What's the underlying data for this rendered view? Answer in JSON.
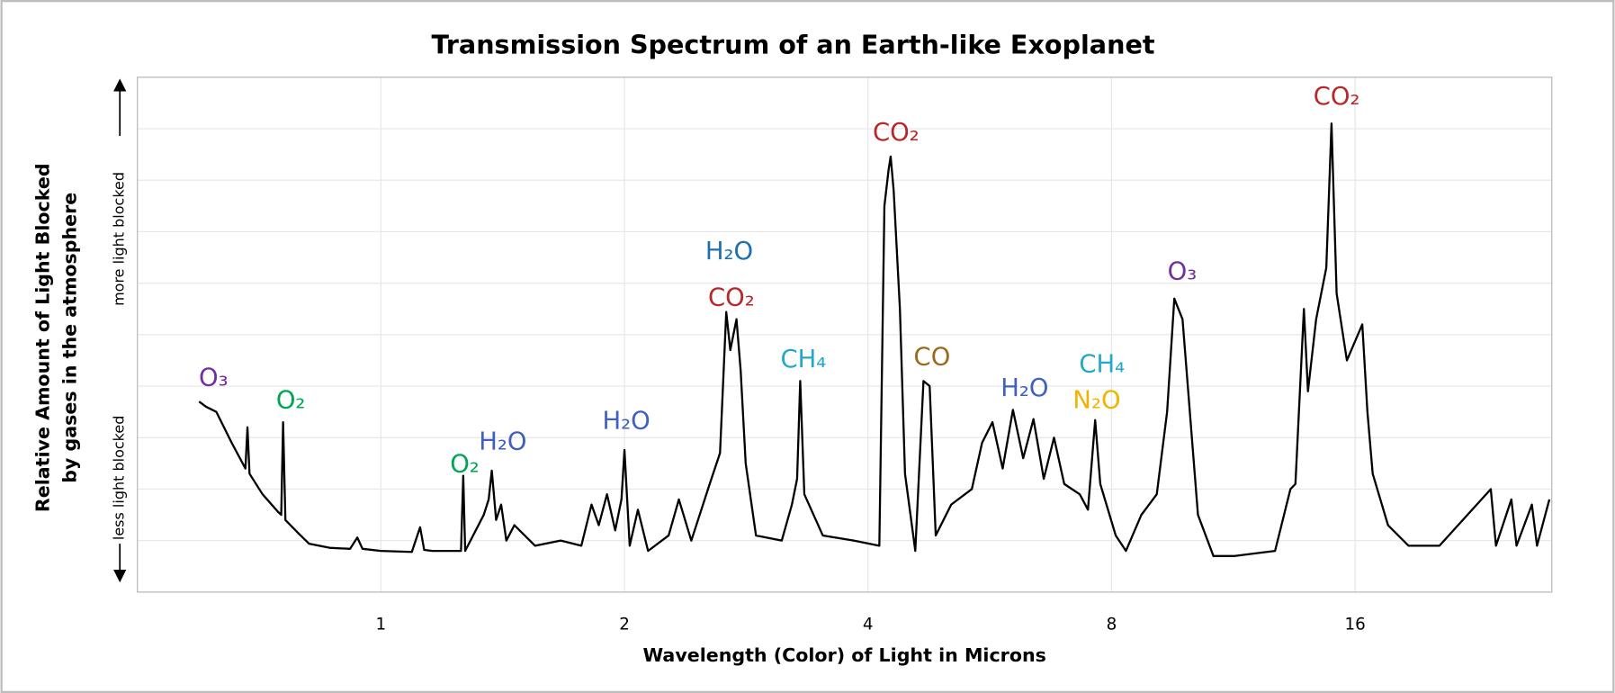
{
  "chart_data": {
    "type": "line",
    "title": "Transmission Spectrum of an Earth-like Exoplanet",
    "xlabel": "Wavelength (Color) of Light in Microns",
    "ylabel": [
      "Relative Amount of Light Blocked",
      "by gases in the atmosphere"
    ],
    "y_more": "more light blocked",
    "y_less": "less light blocked",
    "xscale": "log",
    "xlim": [
      0.5,
      28
    ],
    "xticks": [
      1,
      2,
      4,
      8,
      16
    ],
    "ylim": [
      0,
      10
    ],
    "yticks": [
      1,
      2,
      3,
      4,
      5,
      6,
      7,
      8,
      9
    ],
    "grid": true,
    "color": "#000000",
    "x": [
      0.596,
      0.608,
      0.626,
      0.654,
      0.68,
      0.684,
      0.688,
      0.714,
      0.746,
      0.753,
      0.757,
      0.762,
      0.791,
      0.815,
      0.864,
      0.916,
      0.935,
      0.949,
      1.0,
      1.092,
      1.118,
      1.131,
      1.158,
      1.256,
      1.264,
      1.271,
      1.34,
      1.359,
      1.371,
      1.388,
      1.408,
      1.429,
      1.462,
      1.551,
      1.668,
      1.769,
      1.821,
      1.859,
      1.903,
      1.948,
      1.983,
      2.0,
      2.03,
      2.078,
      2.139,
      2.268,
      2.335,
      2.419,
      2.549,
      2.625,
      2.672,
      2.703,
      2.751,
      2.784,
      2.824,
      2.908,
      3.129,
      3.221,
      3.269,
      3.298,
      3.337,
      3.517,
      3.84,
      4.131,
      4.191,
      4.241,
      4.266,
      4.303,
      4.38,
      4.444,
      4.576,
      4.684,
      4.767,
      4.85,
      5.069,
      5.375,
      5.534,
      5.7,
      5.868,
      6.042,
      6.221,
      6.406,
      6.596,
      6.791,
      6.992,
      7.307,
      7.48,
      7.635,
      7.747,
      8.095,
      8.334,
      8.708,
      9.098,
      9.37,
      9.564,
      9.79,
      10.23,
      10.69,
      11.33,
      12.74,
      13.31,
      13.5,
      13.83,
      13.99,
      14.32,
      14.74,
      14.96,
      15.18,
      15.63,
      16.33,
      16.57,
      16.82,
      17.57,
      18.63,
      20.34,
      23.54,
      23.89,
      24.96,
      25.33,
      26.46,
      26.85,
      27.81
    ],
    "values": [
      3.7,
      3.6,
      3.5,
      2.9,
      2.4,
      3.2,
      2.3,
      1.9,
      1.56,
      1.5,
      3.3,
      1.4,
      1.14,
      0.94,
      0.86,
      0.84,
      1.06,
      0.84,
      0.8,
      0.78,
      1.26,
      0.82,
      0.8,
      0.8,
      2.26,
      0.8,
      1.5,
      1.8,
      2.36,
      1.4,
      1.7,
      1.0,
      1.3,
      0.9,
      1.0,
      0.9,
      1.7,
      1.3,
      1.9,
      1.2,
      1.8,
      2.76,
      0.9,
      1.6,
      0.8,
      1.1,
      1.8,
      1.0,
      2.1,
      2.7,
      5.44,
      4.7,
      5.3,
      4.3,
      2.5,
      1.1,
      1.0,
      1.7,
      2.2,
      4.1,
      1.9,
      1.1,
      1.0,
      0.9,
      7.5,
      8.2,
      8.46,
      7.8,
      5.5,
      2.3,
      0.8,
      4.1,
      4.0,
      1.1,
      1.7,
      2.0,
      2.9,
      3.3,
      2.4,
      3.54,
      2.6,
      3.36,
      2.2,
      3.0,
      2.1,
      1.9,
      1.6,
      3.34,
      2.1,
      1.1,
      0.8,
      1.5,
      1.9,
      3.5,
      5.7,
      5.3,
      1.5,
      0.7,
      0.7,
      0.8,
      2.0,
      2.1,
      5.5,
      3.9,
      5.3,
      6.3,
      9.1,
      5.8,
      4.5,
      5.2,
      3.5,
      2.3,
      1.3,
      0.9,
      0.9,
      2.0,
      0.9,
      1.8,
      0.9,
      1.7,
      0.9,
      1.8
    ],
    "annotations": [
      {
        "text": "O₃",
        "color": "#7030a0"
      },
      {
        "text": "O₂",
        "color": "#00a651"
      },
      {
        "text": "O₂",
        "color": "#00a651"
      },
      {
        "text": "H₂O",
        "color": "#4060c0"
      },
      {
        "text": "H₂O",
        "color": "#4060c0"
      },
      {
        "text": "H₂O",
        "color": "#1f6fb0"
      },
      {
        "text": "CO₂",
        "color": "#b8282a"
      },
      {
        "text": "CH₄",
        "color": "#22a8cc"
      },
      {
        "text": "CO₂",
        "color": "#b8282a"
      },
      {
        "text": "CO",
        "color": "#9a6a1c"
      },
      {
        "text": "H₂O",
        "color": "#4060c0"
      },
      {
        "text": "CH₄",
        "color": "#22a8cc"
      },
      {
        "text": "N₂O",
        "color": "#f0b400"
      },
      {
        "text": "O₃",
        "color": "#7030a0"
      },
      {
        "text": "CO₂",
        "color": "#b8282a"
      }
    ]
  }
}
